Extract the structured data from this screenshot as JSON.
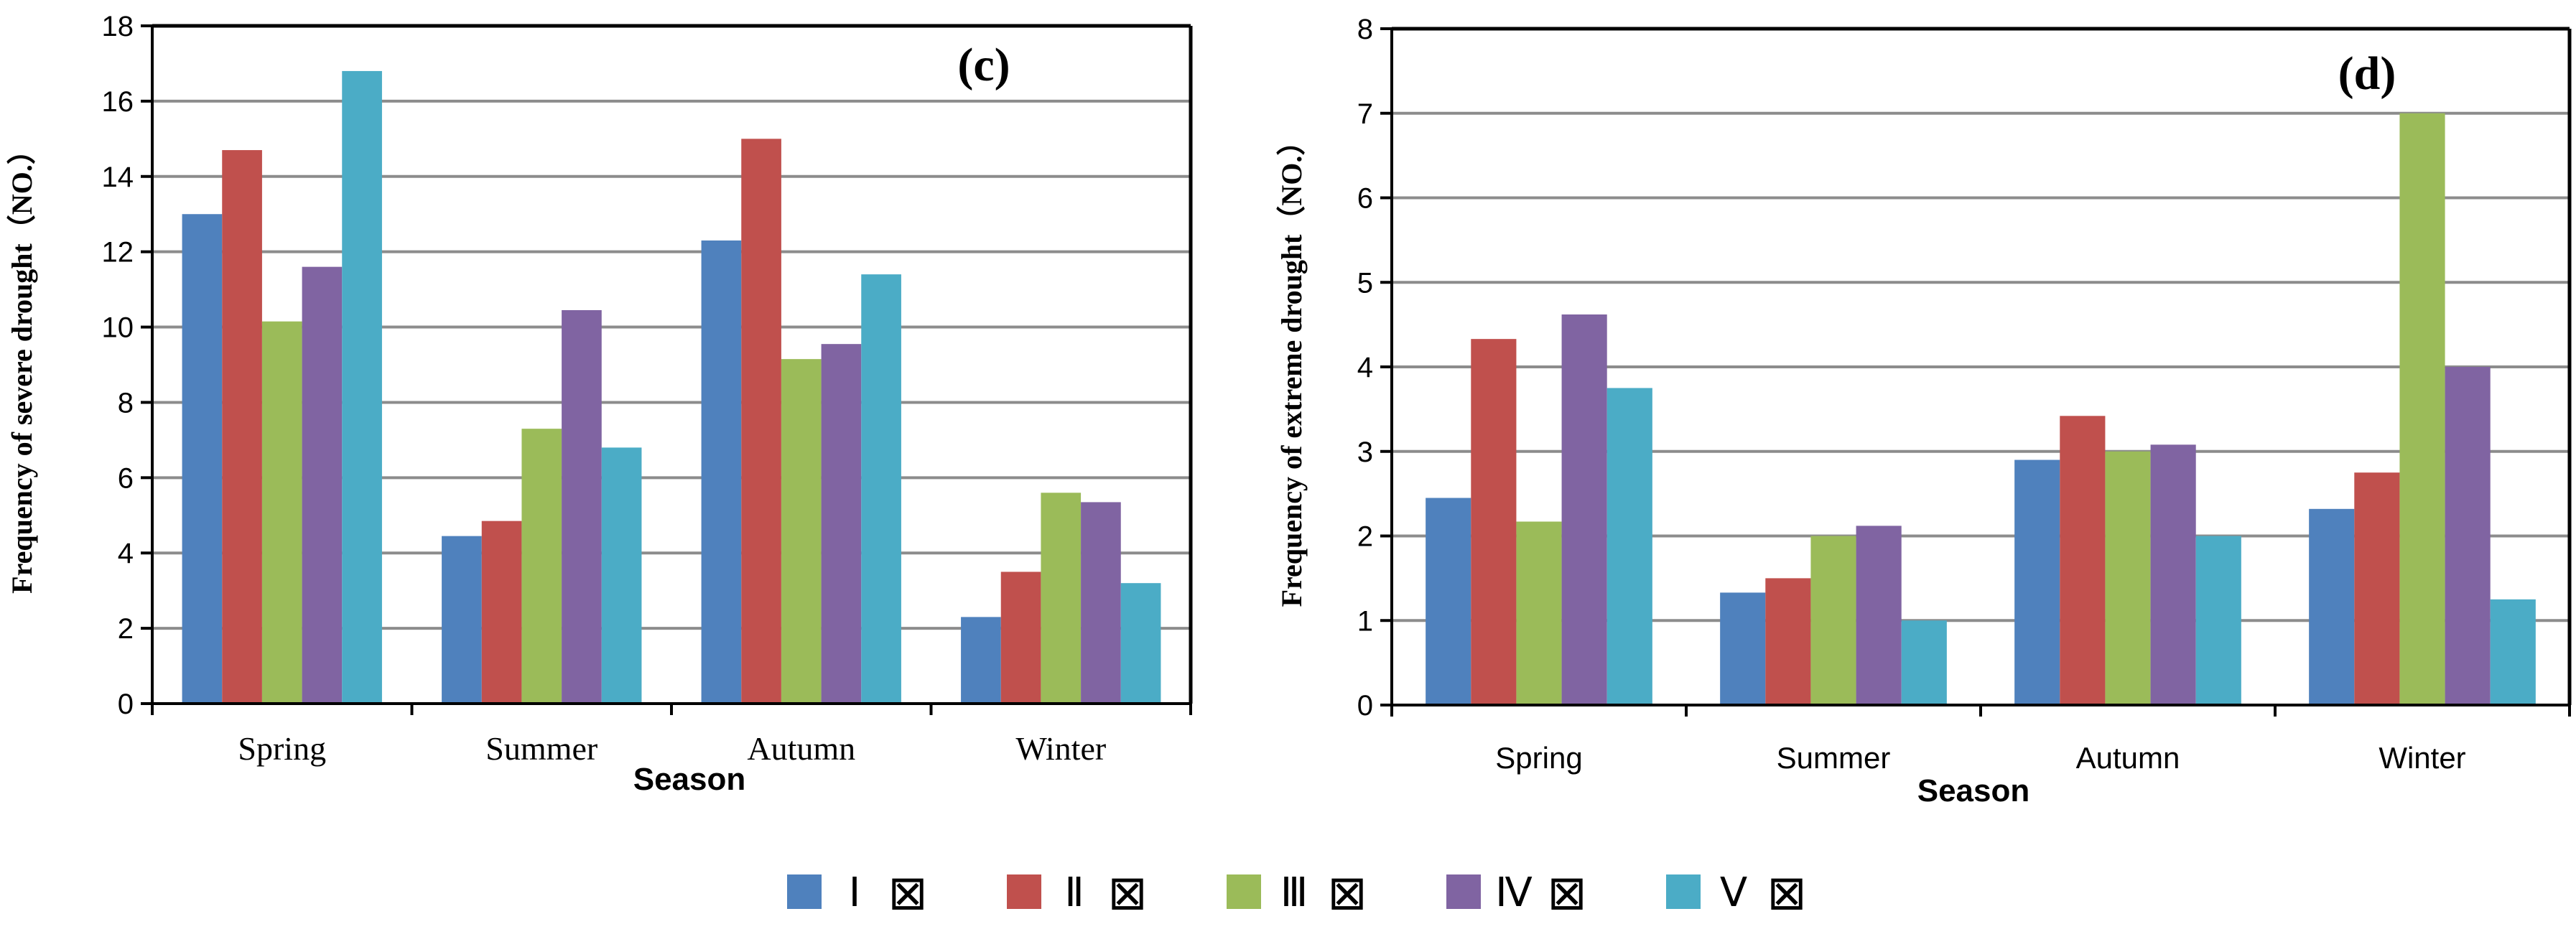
{
  "legend": {
    "items": [
      {
        "label": "Ⅰ",
        "glyph": "⊠",
        "color": "#4F81BD"
      },
      {
        "label": "Ⅱ",
        "glyph": "⊠",
        "color": "#C0504D"
      },
      {
        "label": "Ⅲ",
        "glyph": "⊠",
        "color": "#9BBB59"
      },
      {
        "label": "Ⅳ",
        "glyph": "⊠",
        "color": "#8064A2"
      },
      {
        "label": "Ⅴ",
        "glyph": "⊠",
        "color": "#4BACC6"
      }
    ]
  },
  "chart_data": [
    {
      "type": "bar",
      "panel_label": "(c)",
      "title": "",
      "xlabel": "Season",
      "ylabel": "Frequency of severe drought（NO.）",
      "categories": [
        "Spring",
        "Summer",
        "Autumn",
        "Winter"
      ],
      "ylim": [
        0,
        18
      ],
      "yticks": [
        0,
        2,
        4,
        6,
        8,
        10,
        12,
        14,
        16,
        18
      ],
      "grid": true,
      "legend_position": "bottom",
      "series": [
        {
          "name": "Ⅰ",
          "color": "#4F81BD",
          "values": [
            13.0,
            4.45,
            12.3,
            2.3
          ]
        },
        {
          "name": "Ⅱ",
          "color": "#C0504D",
          "values": [
            14.7,
            4.85,
            15.0,
            3.5
          ]
        },
        {
          "name": "Ⅲ",
          "color": "#9BBB59",
          "values": [
            10.15,
            7.3,
            9.15,
            5.6
          ]
        },
        {
          "name": "Ⅳ",
          "color": "#8064A2",
          "values": [
            11.6,
            10.45,
            9.55,
            5.35
          ]
        },
        {
          "name": "Ⅴ",
          "color": "#4BACC6",
          "values": [
            16.8,
            6.8,
            11.4,
            3.2
          ]
        }
      ]
    },
    {
      "type": "bar",
      "panel_label": "(d)",
      "title": "",
      "xlabel": "Season",
      "ylabel": "Frequency of extreme drought（NO.）",
      "categories": [
        "Spring",
        "Summer",
        "Autumn",
        "Winter"
      ],
      "ylim": [
        0,
        8
      ],
      "yticks": [
        0,
        1,
        2,
        3,
        4,
        5,
        6,
        7,
        8
      ],
      "grid": true,
      "legend_position": "bottom",
      "series": [
        {
          "name": "Ⅰ",
          "color": "#4F81BD",
          "values": [
            2.45,
            1.33,
            2.9,
            2.32
          ]
        },
        {
          "name": "Ⅱ",
          "color": "#C0504D",
          "values": [
            4.33,
            1.5,
            3.42,
            2.75
          ]
        },
        {
          "name": "Ⅲ",
          "color": "#9BBB59",
          "values": [
            2.17,
            2.0,
            3.0,
            7.0
          ]
        },
        {
          "name": "Ⅳ",
          "color": "#8064A2",
          "values": [
            4.62,
            2.12,
            3.08,
            4.0
          ]
        },
        {
          "name": "Ⅴ",
          "color": "#4BACC6",
          "values": [
            3.75,
            1.0,
            2.0,
            1.25
          ]
        }
      ]
    }
  ]
}
